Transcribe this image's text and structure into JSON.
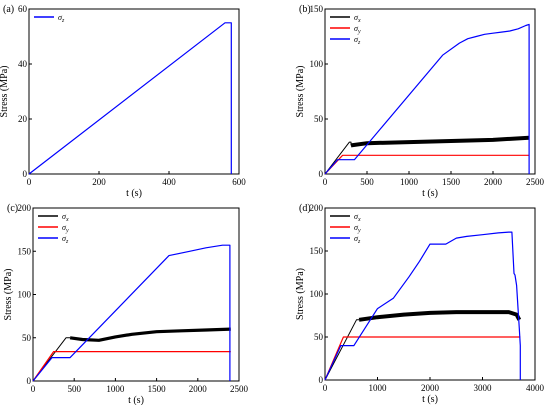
{
  "chart_data": [
    {
      "type": "line",
      "panel_label": "(a)",
      "xlabel": "t (s)",
      "ylabel": "Stress (MPa)",
      "xlim": [
        0,
        600
      ],
      "ylim": [
        0,
        60
      ],
      "xticks": [
        0,
        200,
        400,
        600
      ],
      "yticks": [
        0,
        20,
        40,
        60
      ],
      "legend_position": "top-left",
      "series": [
        {
          "name": "σz",
          "name_base": "σ",
          "name_sub": "z",
          "color": "#0000ff",
          "width": 1.2,
          "x": [
            0,
            560,
            578,
            578
          ],
          "y": [
            0,
            55,
            55,
            0
          ]
        }
      ]
    },
    {
      "type": "line",
      "panel_label": "(b)",
      "xlabel": "t (s)",
      "ylabel": "Stress (MPa)",
      "xlim": [
        0,
        2500
      ],
      "ylim": [
        0,
        150
      ],
      "xticks": [
        0,
        500,
        1000,
        1500,
        2000,
        2500
      ],
      "yticks": [
        0,
        50,
        100,
        150
      ],
      "legend_position": "top-left",
      "series": [
        {
          "name": "σx",
          "name_base": "σ",
          "name_sub": "x",
          "color": "#000000",
          "width": 1.0,
          "x": [
            0,
            290,
            310,
            310
          ],
          "y": [
            0,
            29,
            29,
            26
          ]
        },
        {
          "name": "σx-band",
          "color": "#000000",
          "width": 4.0,
          "x": [
            310,
            500,
            1000,
            1500,
            2000,
            2430
          ],
          "y": [
            26,
            28,
            29,
            30,
            31,
            33
          ]
        },
        {
          "name": "σy",
          "name_base": "σ",
          "name_sub": "y",
          "color": "#ff0000",
          "width": 1.2,
          "x": [
            0,
            210,
            2430
          ],
          "y": [
            0,
            17,
            17
          ]
        },
        {
          "name": "σz",
          "name_base": "σ",
          "name_sub": "z",
          "color": "#0000ff",
          "width": 1.2,
          "x": [
            0,
            150,
            350,
            1400,
            1600,
            1700,
            1800,
            1900,
            2000,
            2100,
            2200,
            2300,
            2390,
            2430,
            2430
          ],
          "y": [
            0,
            13,
            13,
            108,
            119,
            123,
            125,
            127,
            128,
            129,
            130,
            132,
            135,
            136,
            0
          ]
        }
      ]
    },
    {
      "type": "line",
      "panel_label": "(c)",
      "xlabel": "t (s)",
      "ylabel": "Stress (MPa)",
      "xlim": [
        0,
        2500
      ],
      "ylim": [
        0,
        200
      ],
      "xticks": [
        0,
        500,
        1000,
        1500,
        2000,
        2500
      ],
      "yticks": [
        0,
        50,
        100,
        150,
        200
      ],
      "legend_position": "top-left",
      "series": [
        {
          "name": "σx",
          "name_base": "σ",
          "name_sub": "x",
          "color": "#000000",
          "width": 1.0,
          "x": [
            0,
            400,
            450
          ],
          "y": [
            0,
            50,
            50
          ]
        },
        {
          "name": "σx-band",
          "color": "#000000",
          "width": 3.2,
          "x": [
            450,
            600,
            800,
            1000,
            1200,
            1500,
            1800,
            2100,
            2400
          ],
          "y": [
            50,
            48,
            47,
            51,
            54,
            57,
            58,
            59,
            60
          ]
        },
        {
          "name": "σy",
          "name_base": "σ",
          "name_sub": "y",
          "color": "#ff0000",
          "width": 1.2,
          "x": [
            0,
            250,
            2400
          ],
          "y": [
            0,
            34,
            34
          ]
        },
        {
          "name": "σz",
          "name_base": "σ",
          "name_sub": "z",
          "color": "#0000ff",
          "width": 1.2,
          "x": [
            0,
            230,
            450,
            1650,
            1900,
            2100,
            2300,
            2390,
            2390
          ],
          "y": [
            0,
            27,
            27,
            145,
            150,
            154,
            157,
            157,
            0
          ]
        }
      ]
    },
    {
      "type": "line",
      "panel_label": "(d)",
      "xlabel": "t (s)",
      "ylabel": "Stress (MPa)",
      "xlim": [
        0,
        4000
      ],
      "ylim": [
        0,
        200
      ],
      "xticks": [
        0,
        1000,
        2000,
        3000,
        4000
      ],
      "yticks": [
        0,
        50,
        100,
        150,
        200
      ],
      "legend_position": "top-left",
      "series": [
        {
          "name": "σx",
          "name_base": "σ",
          "name_sub": "x",
          "color": "#000000",
          "width": 1.0,
          "x": [
            0,
            600,
            650
          ],
          "y": [
            0,
            70,
            70
          ]
        },
        {
          "name": "σx-band",
          "color": "#000000",
          "width": 4.0,
          "x": [
            650,
            1000,
            1500,
            2000,
            2500,
            3000,
            3500,
            3650,
            3700
          ],
          "y": [
            70,
            73,
            76,
            78,
            79,
            79,
            79,
            76,
            70
          ]
        },
        {
          "name": "σy",
          "name_base": "σ",
          "name_sub": "y",
          "color": "#ff0000",
          "width": 1.2,
          "x": [
            0,
            350,
            3720
          ],
          "y": [
            0,
            50,
            50
          ]
        },
        {
          "name": "σz",
          "name_base": "σ",
          "name_sub": "z",
          "color": "#0000ff",
          "width": 1.2,
          "x": [
            0,
            300,
            550,
            1000,
            1300,
            1600,
            1800,
            2000,
            2300,
            2500,
            2700,
            3000,
            3300,
            3500,
            3560,
            3600,
            3620,
            3650,
            3680,
            3700,
            3720,
            3720
          ],
          "y": [
            0,
            40,
            40,
            83,
            95,
            120,
            138,
            158,
            158,
            165,
            167,
            169,
            171,
            172,
            172,
            124,
            122,
            110,
            80,
            60,
            40,
            0
          ]
        }
      ]
    }
  ]
}
